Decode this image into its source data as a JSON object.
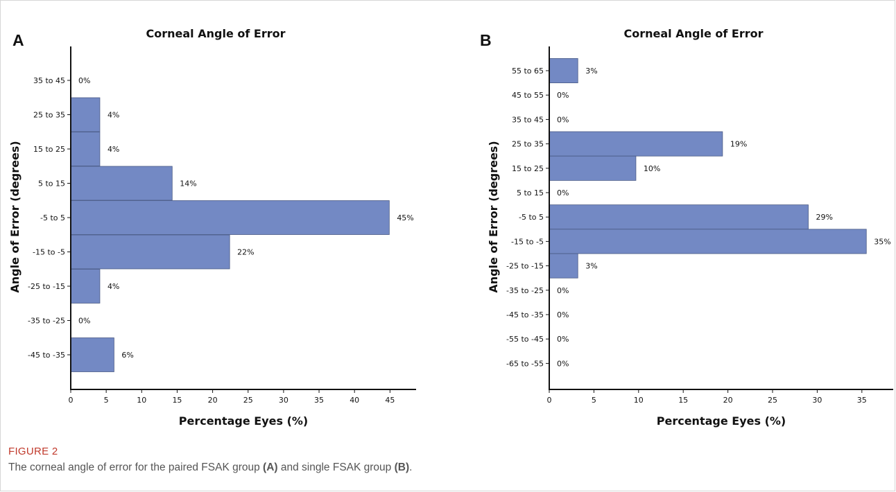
{
  "chart_data": [
    {
      "panel_label": "A",
      "type": "bar",
      "orientation": "horizontal",
      "title": "Corneal Angle of Error",
      "xlabel": "Percentage Eyes (%)",
      "ylabel": "Angle of Error (degrees)",
      "xlim": [
        0,
        48
      ],
      "xticks": [
        0,
        5,
        10,
        15,
        20,
        25,
        30,
        35,
        40,
        45
      ],
      "categories": [
        "35 to 45",
        "25 to 35",
        "15 to 25",
        "5 to 15",
        "-5 to 5",
        "-15 to -5",
        "-25 to -15",
        "-35 to -25",
        "-45 to -35"
      ],
      "values": [
        0,
        4.1,
        4.1,
        14.3,
        44.9,
        22.4,
        4.1,
        0,
        6.1
      ],
      "data_labels": [
        "0%",
        "4%",
        "4%",
        "14%",
        "45%",
        "22%",
        "4%",
        "0%",
        "6%"
      ],
      "bar_color": "#7389c4"
    },
    {
      "panel_label": "B",
      "type": "bar",
      "orientation": "horizontal",
      "title": "Corneal Angle of Error",
      "xlabel": "Percentage Eyes (%)",
      "ylabel": "Angle of Error (degrees)",
      "xlim": [
        0,
        36.6
      ],
      "xticks": [
        0,
        5,
        10,
        15,
        20,
        25,
        30,
        35
      ],
      "categories": [
        "55 to 65",
        "45 to 55",
        "35 to 45",
        "25 to 35",
        "15 to 25",
        "5 to 15",
        "-5 to 5",
        "-15 to -5",
        "-25 to -15",
        "-35 to -25",
        "-45 to -35",
        "-55 to -45",
        "-65 to -55"
      ],
      "values": [
        3.2,
        0,
        0,
        19.4,
        9.7,
        0,
        29.0,
        35.5,
        3.2,
        0,
        0,
        0,
        0
      ],
      "data_labels": [
        "3%",
        "0%",
        "0%",
        "19%",
        "10%",
        "0%",
        "29%",
        "35%",
        "3%",
        "0%",
        "0%",
        "0%",
        "0%"
      ],
      "bar_color": "#7389c4"
    }
  ],
  "caption": {
    "label": "FIGURE 2",
    "text_before_a": "The corneal angle of error for the paired FSAK group ",
    "ref_a": "(A)",
    "text_between": " and single FSAK group ",
    "ref_b": "(B)",
    "text_after": "."
  }
}
